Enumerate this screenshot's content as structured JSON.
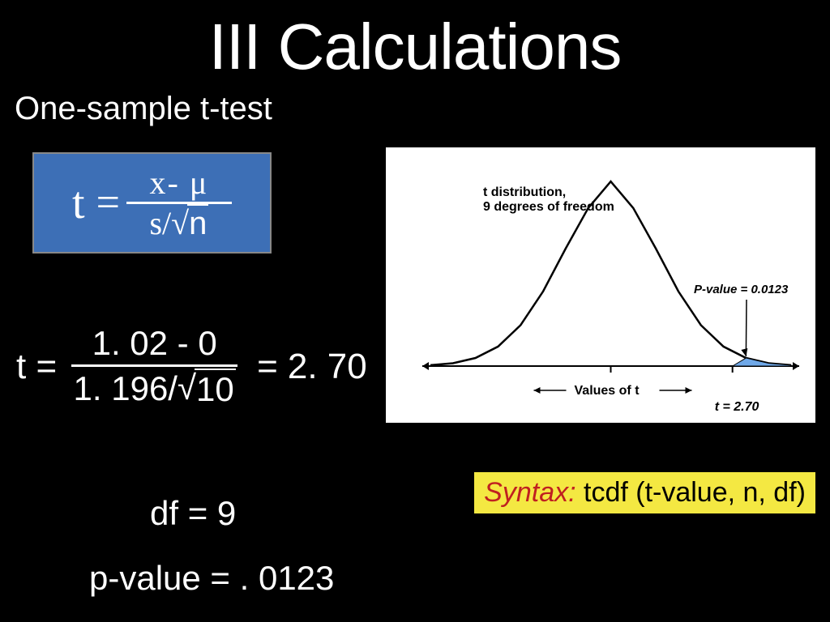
{
  "title": "III Calculations",
  "subtitle": "One-sample t-test",
  "formula": {
    "lhs": "t",
    "eq": "=",
    "numerator": "x- μ",
    "denom_s": "s/",
    "denom_sqrt_arg": "n",
    "box_bg": "#3d6fb6",
    "text_color": "#ffffff"
  },
  "calc": {
    "lhs": "t =",
    "numerator": "1. 02 - 0",
    "denom_left": "1. 196/",
    "denom_sqrt_arg": "10",
    "eq": "=",
    "result": "2. 70"
  },
  "df": {
    "label": "df =",
    "value": "9"
  },
  "pvalue": {
    "label": "p-value =",
    "value": ". 0123"
  },
  "syntax": {
    "label": "Syntax:",
    "text": " tcdf (t-value, n, df)",
    "bg": "#f4e842",
    "label_color": "#c02020"
  },
  "graph": {
    "caption1": "t distribution,",
    "caption2": "9 degrees of freedom",
    "pvalue_label": "P-value = 0.0123",
    "xaxis_label": "Values of t",
    "t_mark_label": "t = 2.70",
    "curve_color": "#000000",
    "fill_color": "#6fa8e8",
    "bg": "#ffffff",
    "x_range": [
      -4,
      4
    ],
    "t_value": 2.7,
    "curve_points": [
      [
        -4,
        0.002
      ],
      [
        -3.5,
        0.006
      ],
      [
        -3,
        0.017
      ],
      [
        -2.5,
        0.041
      ],
      [
        -2,
        0.086
      ],
      [
        -1.5,
        0.157
      ],
      [
        -1,
        0.247
      ],
      [
        -0.5,
        0.332
      ],
      [
        0,
        0.388
      ],
      [
        0.5,
        0.332
      ],
      [
        1,
        0.247
      ],
      [
        1.5,
        0.157
      ],
      [
        2,
        0.086
      ],
      [
        2.5,
        0.041
      ],
      [
        3,
        0.017
      ],
      [
        3.5,
        0.006
      ],
      [
        4,
        0.002
      ]
    ]
  }
}
